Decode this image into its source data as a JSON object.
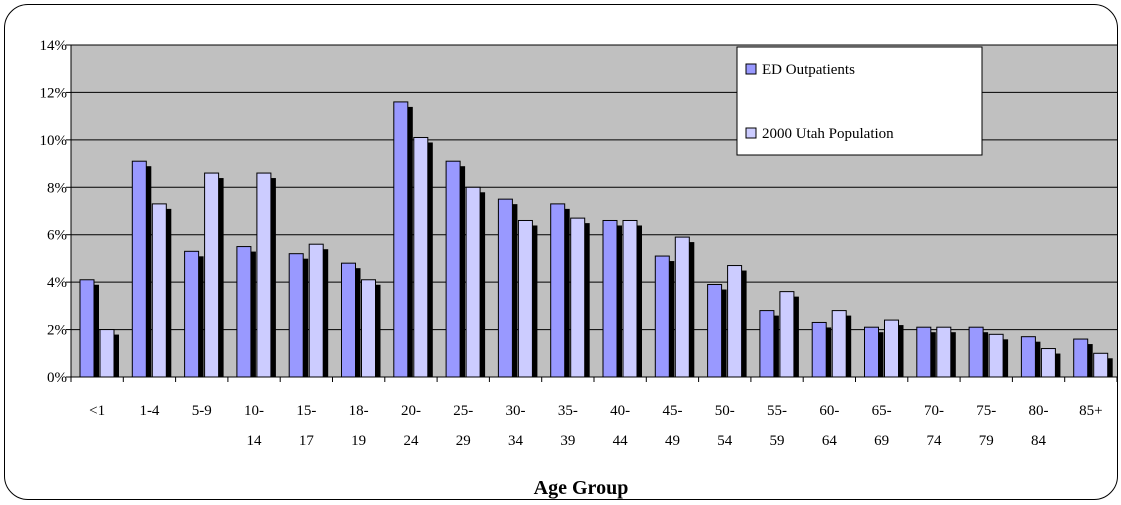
{
  "chart_data": {
    "type": "bar",
    "title": "",
    "xlabel": "Age Group",
    "ylabel": "",
    "ylim": [
      0,
      14
    ],
    "yticks": [
      "0%",
      "2%",
      "4%",
      "6%",
      "8%",
      "10%",
      "12%",
      "14%"
    ],
    "ytick_values": [
      0,
      2,
      4,
      6,
      8,
      10,
      12,
      14
    ],
    "categories": [
      [
        "<1",
        ""
      ],
      [
        "1-4",
        ""
      ],
      [
        "5-9",
        ""
      ],
      [
        "10-",
        "14"
      ],
      [
        "15-",
        "17"
      ],
      [
        "18-",
        "19"
      ],
      [
        "20-",
        "24"
      ],
      [
        "25-",
        "29"
      ],
      [
        "30-",
        "34"
      ],
      [
        "35-",
        "39"
      ],
      [
        "40-",
        "44"
      ],
      [
        "45-",
        "49"
      ],
      [
        "50-",
        "54"
      ],
      [
        "55-",
        "59"
      ],
      [
        "60-",
        "64"
      ],
      [
        "65-",
        "69"
      ],
      [
        "70-",
        "74"
      ],
      [
        "75-",
        "79"
      ],
      [
        "80-",
        "84"
      ],
      [
        "85+",
        ""
      ]
    ],
    "series": [
      {
        "name": "ED Outpatients",
        "color": "#9999ff",
        "values": [
          4.1,
          9.1,
          5.3,
          5.5,
          5.2,
          4.8,
          11.6,
          9.1,
          7.5,
          7.3,
          6.6,
          5.1,
          3.9,
          2.8,
          2.3,
          2.1,
          2.1,
          2.1,
          1.7,
          1.6
        ]
      },
      {
        "name": "2000 Utah Population",
        "color": "#ccccff",
        "values": [
          2.0,
          7.3,
          8.6,
          8.6,
          5.6,
          4.1,
          10.1,
          8.0,
          6.6,
          6.7,
          6.6,
          5.9,
          4.7,
          3.6,
          2.8,
          2.4,
          2.1,
          1.8,
          1.2,
          1.0
        ]
      }
    ],
    "grid": true,
    "background_color": "#c0c0c0",
    "legend_position": "top-right"
  }
}
